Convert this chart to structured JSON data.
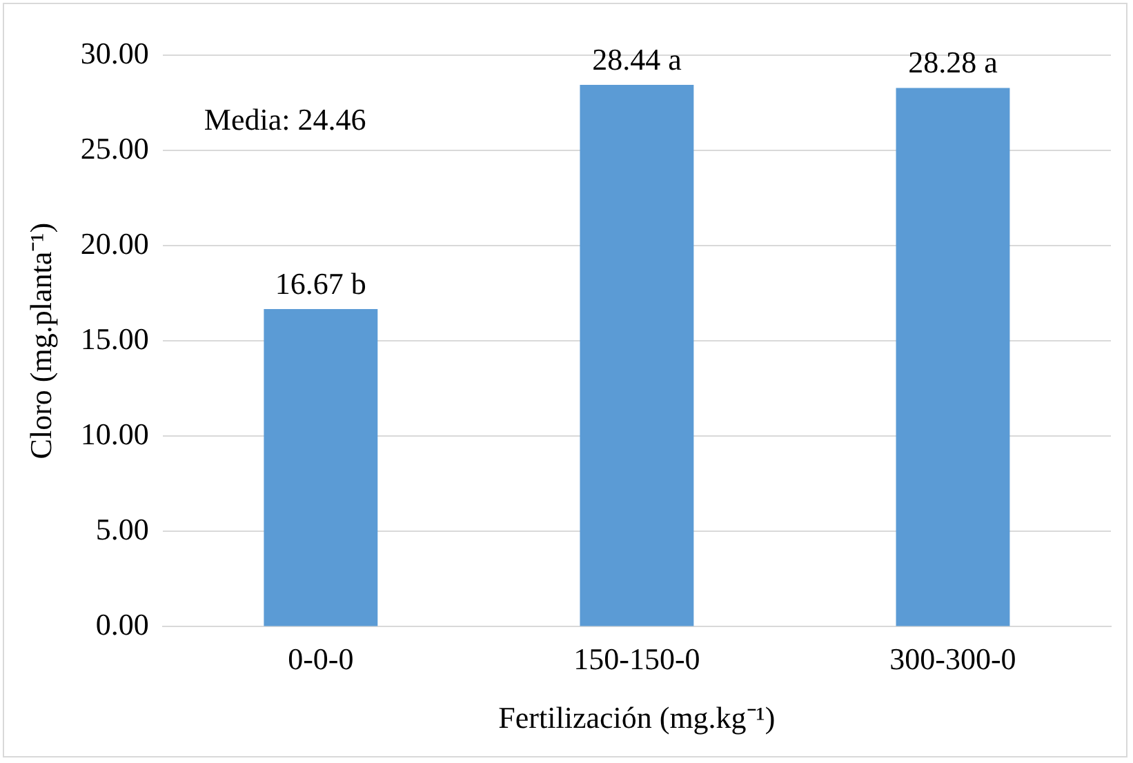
{
  "chart_data": {
    "type": "bar",
    "xlabel": "Fertilización (mg.kg⁻¹)",
    "ylabel": "Cloro (mg.planta⁻¹)",
    "categories": [
      "0-0-0",
      "150-150-0",
      "300-300-0"
    ],
    "values": [
      16.67,
      28.44,
      28.28
    ],
    "color": "#5b9bd5",
    "value_labels": [
      "16.67 b",
      "28.44 a",
      "28.28 a"
    ],
    "annotations": [
      "Media: 24.46"
    ],
    "ylim": [
      0,
      30
    ],
    "yticks": [
      {
        "value": 0,
        "label": "0.00"
      },
      {
        "value": 5,
        "label": "5.00"
      },
      {
        "value": 10,
        "label": "10.00"
      },
      {
        "value": 15,
        "label": "15.00"
      },
      {
        "value": 20,
        "label": "20.00"
      },
      {
        "value": 25,
        "label": "25.00"
      },
      {
        "value": 30,
        "label": "30.00"
      }
    ],
    "grid": "y"
  }
}
